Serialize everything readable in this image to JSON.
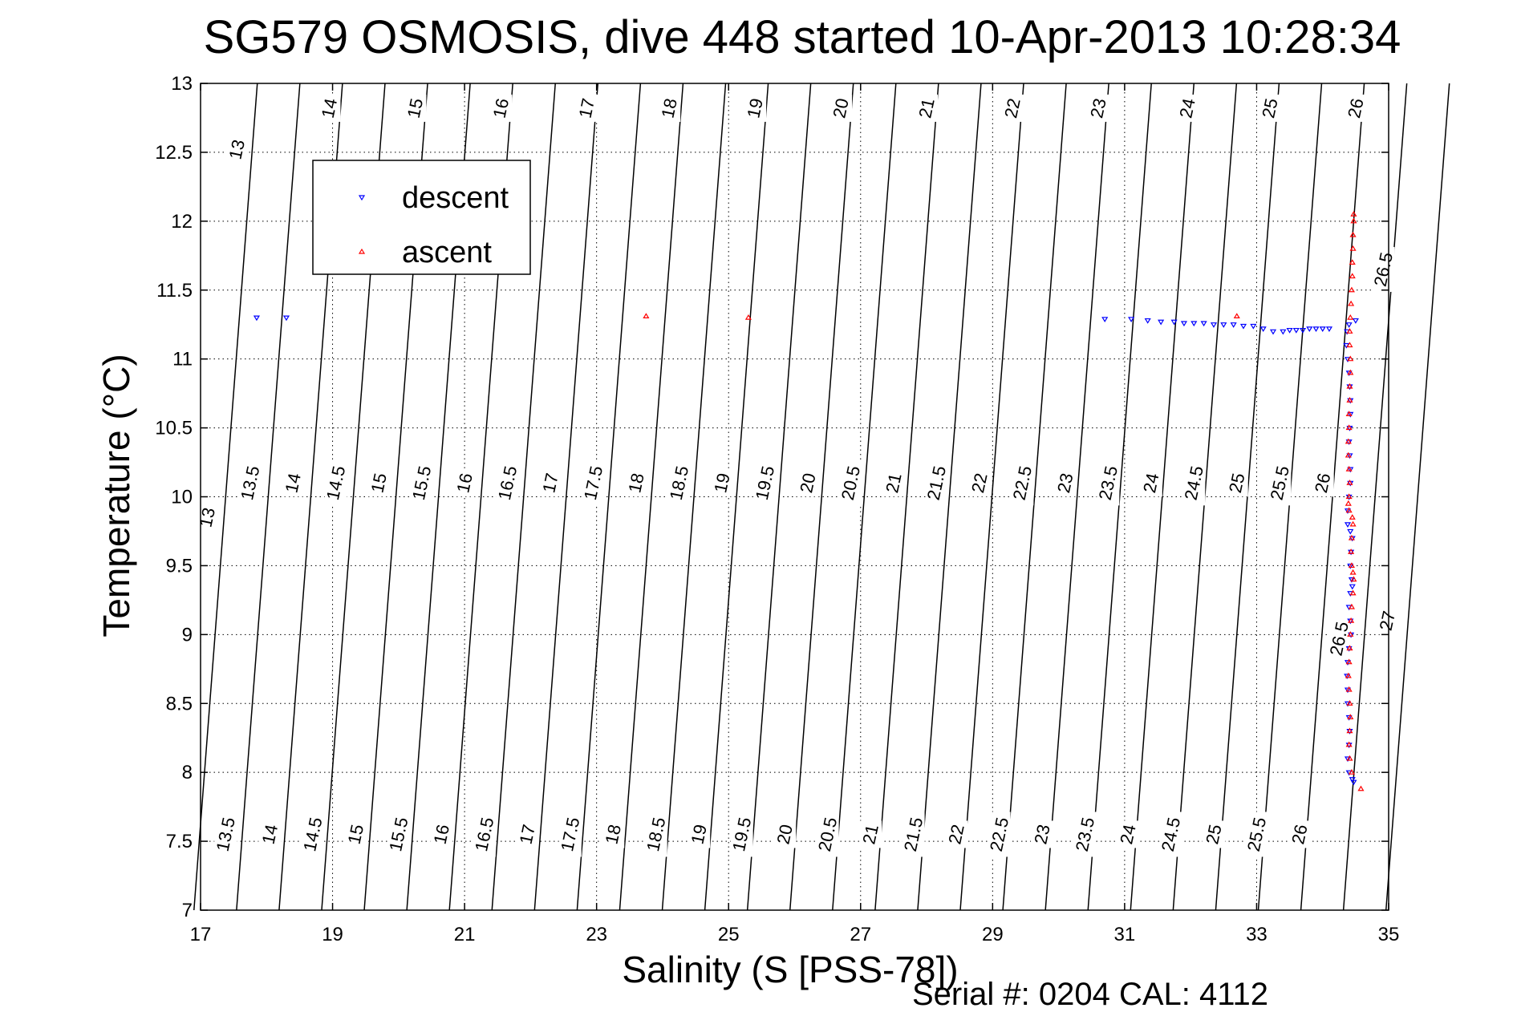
{
  "chart_data": {
    "type": "scatter",
    "title": "SG579 OSMOSIS, dive 448 started 10-Apr-2013 10:28:34",
    "xlabel": "Salinity (S [PSS-78])",
    "ylabel": "Temperature (°C)",
    "footer": "Serial #: 0204  CAL: 4112",
    "xlim": [
      17,
      35
    ],
    "ylim": [
      7,
      13
    ],
    "xticks": [
      17,
      19,
      21,
      23,
      25,
      27,
      29,
      31,
      33,
      35
    ],
    "xtick_labels": [
      "17",
      "19",
      "21",
      "23",
      "25",
      "27",
      "29",
      "31",
      "33",
      "35"
    ],
    "yticks": [
      7,
      7.5,
      8,
      8.5,
      9,
      9.5,
      10,
      10.5,
      11,
      11.5,
      12,
      12.5,
      13
    ],
    "ytick_labels": [
      "7",
      "7.5",
      "8",
      "8.5",
      "9",
      "9.5",
      "10",
      "10.5",
      "11",
      "11.5",
      "12",
      "12.5",
      "13"
    ],
    "grid": true,
    "legend": {
      "placement": "top-left",
      "entries": [
        {
          "name": "descent",
          "color": "#0000ff",
          "marker": "triangle-down"
        },
        {
          "name": "ascent",
          "color": "#ff0000",
          "marker": "triangle-up"
        }
      ]
    },
    "isopycnal_contours": {
      "color": "#000000",
      "levels": [
        13,
        13.5,
        14,
        14.5,
        15,
        15.5,
        16,
        16.5,
        17,
        17.5,
        18,
        18.5,
        19,
        19.5,
        20,
        20.5,
        21,
        21.5,
        22,
        22.5,
        23,
        23.5,
        24,
        24.5,
        25,
        25.5,
        26,
        26.5,
        27
      ],
      "labels_top": [
        {
          "text": "13",
          "s": 17.55,
          "t": 12.52
        },
        {
          "text": "14",
          "s": 18.95,
          "t": 12.82
        },
        {
          "text": "15",
          "s": 20.25,
          "t": 12.82
        },
        {
          "text": "16",
          "s": 21.55,
          "t": 12.82
        },
        {
          "text": "17",
          "s": 22.85,
          "t": 12.82
        },
        {
          "text": "18",
          "s": 24.1,
          "t": 12.82
        },
        {
          "text": "19",
          "s": 25.4,
          "t": 12.82
        },
        {
          "text": "20",
          "s": 26.7,
          "t": 12.82
        },
        {
          "text": "21",
          "s": 28.0,
          "t": 12.82
        },
        {
          "text": "22",
          "s": 29.3,
          "t": 12.82
        },
        {
          "text": "23",
          "s": 30.6,
          "t": 12.82
        },
        {
          "text": "24",
          "s": 31.95,
          "t": 12.82
        },
        {
          "text": "25",
          "s": 33.2,
          "t": 12.82
        },
        {
          "text": "26",
          "s": 34.5,
          "t": 12.82
        },
        {
          "text": "26.5",
          "s": 34.92,
          "t": 11.65
        }
      ],
      "labels_mid": [
        {
          "text": "13",
          "s": 17.1,
          "t": 9.85
        },
        {
          "text": "13.5",
          "s": 17.75,
          "t": 10.1
        },
        {
          "text": "14",
          "s": 18.4,
          "t": 10.1
        },
        {
          "text": "14.5",
          "s": 19.05,
          "t": 10.1
        },
        {
          "text": "15",
          "s": 19.7,
          "t": 10.1
        },
        {
          "text": "15.5",
          "s": 20.35,
          "t": 10.1
        },
        {
          "text": "16",
          "s": 21.0,
          "t": 10.1
        },
        {
          "text": "16.5",
          "s": 21.65,
          "t": 10.1
        },
        {
          "text": "17",
          "s": 22.3,
          "t": 10.1
        },
        {
          "text": "17.5",
          "s": 22.95,
          "t": 10.1
        },
        {
          "text": "18",
          "s": 23.6,
          "t": 10.1
        },
        {
          "text": "18.5",
          "s": 24.25,
          "t": 10.1
        },
        {
          "text": "19",
          "s": 24.9,
          "t": 10.1
        },
        {
          "text": "19.5",
          "s": 25.55,
          "t": 10.1
        },
        {
          "text": "20",
          "s": 26.2,
          "t": 10.1
        },
        {
          "text": "20.5",
          "s": 26.85,
          "t": 10.1
        },
        {
          "text": "21",
          "s": 27.5,
          "t": 10.1
        },
        {
          "text": "21.5",
          "s": 28.15,
          "t": 10.1
        },
        {
          "text": "22",
          "s": 28.8,
          "t": 10.1
        },
        {
          "text": "22.5",
          "s": 29.45,
          "t": 10.1
        },
        {
          "text": "23",
          "s": 30.1,
          "t": 10.1
        },
        {
          "text": "23.5",
          "s": 30.75,
          "t": 10.1
        },
        {
          "text": "24",
          "s": 31.4,
          "t": 10.1
        },
        {
          "text": "24.5",
          "s": 32.05,
          "t": 10.1
        },
        {
          "text": "25",
          "s": 32.7,
          "t": 10.1
        },
        {
          "text": "25.5",
          "s": 33.35,
          "t": 10.1
        },
        {
          "text": "26",
          "s": 34.0,
          "t": 10.1
        },
        {
          "text": "26.5",
          "s": 34.25,
          "t": 8.97
        },
        {
          "text": "27",
          "s": 34.98,
          "t": 9.1
        }
      ],
      "labels_bottom": [
        {
          "text": "13.5",
          "s": 17.38,
          "t": 7.55
        },
        {
          "text": "14",
          "s": 18.05,
          "t": 7.55
        },
        {
          "text": "14.5",
          "s": 18.7,
          "t": 7.55
        },
        {
          "text": "15",
          "s": 19.35,
          "t": 7.55
        },
        {
          "text": "15.5",
          "s": 20.0,
          "t": 7.55
        },
        {
          "text": "16",
          "s": 20.65,
          "t": 7.55
        },
        {
          "text": "16.5",
          "s": 21.3,
          "t": 7.55
        },
        {
          "text": "17",
          "s": 21.95,
          "t": 7.55
        },
        {
          "text": "17.5",
          "s": 22.6,
          "t": 7.55
        },
        {
          "text": "18",
          "s": 23.25,
          "t": 7.55
        },
        {
          "text": "18.5",
          "s": 23.9,
          "t": 7.55
        },
        {
          "text": "19",
          "s": 24.55,
          "t": 7.55
        },
        {
          "text": "19.5",
          "s": 25.2,
          "t": 7.55
        },
        {
          "text": "20",
          "s": 25.85,
          "t": 7.55
        },
        {
          "text": "20.5",
          "s": 26.5,
          "t": 7.55
        },
        {
          "text": "21",
          "s": 27.15,
          "t": 7.55
        },
        {
          "text": "21.5",
          "s": 27.8,
          "t": 7.55
        },
        {
          "text": "22",
          "s": 28.45,
          "t": 7.55
        },
        {
          "text": "22.5",
          "s": 29.1,
          "t": 7.55
        },
        {
          "text": "23",
          "s": 29.75,
          "t": 7.55
        },
        {
          "text": "23.5",
          "s": 30.4,
          "t": 7.55
        },
        {
          "text": "24",
          "s": 31.05,
          "t": 7.55
        },
        {
          "text": "24.5",
          "s": 31.7,
          "t": 7.55
        },
        {
          "text": "25",
          "s": 32.35,
          "t": 7.55
        },
        {
          "text": "25.5",
          "s": 33.0,
          "t": 7.55
        },
        {
          "text": "26",
          "s": 33.65,
          "t": 7.55
        }
      ]
    },
    "series": [
      {
        "name": "descent",
        "color": "#0000ff",
        "marker": "triangle-down",
        "points": [
          [
            17.85,
            11.3
          ],
          [
            18.3,
            11.3
          ],
          [
            30.7,
            11.29
          ],
          [
            31.1,
            11.29
          ],
          [
            31.35,
            11.28
          ],
          [
            31.55,
            11.27
          ],
          [
            31.75,
            11.27
          ],
          [
            31.9,
            11.26
          ],
          [
            32.05,
            11.26
          ],
          [
            32.2,
            11.26
          ],
          [
            32.35,
            11.25
          ],
          [
            32.5,
            11.25
          ],
          [
            32.65,
            11.25
          ],
          [
            32.8,
            11.24
          ],
          [
            32.95,
            11.24
          ],
          [
            33.1,
            11.22
          ],
          [
            33.25,
            11.2
          ],
          [
            33.4,
            11.2
          ],
          [
            33.5,
            11.21
          ],
          [
            33.6,
            11.21
          ],
          [
            33.7,
            11.21
          ],
          [
            33.8,
            11.22
          ],
          [
            33.9,
            11.22
          ],
          [
            34.0,
            11.22
          ],
          [
            34.1,
            11.22
          ],
          [
            34.5,
            11.28
          ],
          [
            34.4,
            11.25
          ],
          [
            34.37,
            11.2
          ],
          [
            34.36,
            11.1
          ],
          [
            34.38,
            11.0
          ],
          [
            34.4,
            10.9
          ],
          [
            34.41,
            10.8
          ],
          [
            34.42,
            10.7
          ],
          [
            34.42,
            10.6
          ],
          [
            34.41,
            10.5
          ],
          [
            34.4,
            10.4
          ],
          [
            34.41,
            10.3
          ],
          [
            34.42,
            10.2
          ],
          [
            34.42,
            10.1
          ],
          [
            34.4,
            10.0
          ],
          [
            34.38,
            9.9
          ],
          [
            34.38,
            9.8
          ],
          [
            34.42,
            9.75
          ],
          [
            34.45,
            9.7
          ],
          [
            34.43,
            9.6
          ],
          [
            34.42,
            9.5
          ],
          [
            34.44,
            9.4
          ],
          [
            34.45,
            9.35
          ],
          [
            34.42,
            9.3
          ],
          [
            34.4,
            9.2
          ],
          [
            34.42,
            9.1
          ],
          [
            34.43,
            9.0
          ],
          [
            34.4,
            8.9
          ],
          [
            34.38,
            8.8
          ],
          [
            34.37,
            8.7
          ],
          [
            34.38,
            8.6
          ],
          [
            34.38,
            8.5
          ],
          [
            34.4,
            8.4
          ],
          [
            34.41,
            8.3
          ],
          [
            34.4,
            8.2
          ],
          [
            34.38,
            8.1
          ],
          [
            34.4,
            8.0
          ],
          [
            34.45,
            7.95
          ],
          [
            34.47,
            7.93
          ]
        ]
      },
      {
        "name": "ascent",
        "color": "#ff0000",
        "marker": "triangle-up",
        "points": [
          [
            23.75,
            11.31
          ],
          [
            25.3,
            11.3
          ],
          [
            32.7,
            11.31
          ],
          [
            34.47,
            12.05
          ],
          [
            34.47,
            12.0
          ],
          [
            34.46,
            11.9
          ],
          [
            34.46,
            11.8
          ],
          [
            34.45,
            11.7
          ],
          [
            34.45,
            11.6
          ],
          [
            34.44,
            11.5
          ],
          [
            34.43,
            11.4
          ],
          [
            34.42,
            11.3
          ],
          [
            34.41,
            11.2
          ],
          [
            34.41,
            11.1
          ],
          [
            34.42,
            11.0
          ],
          [
            34.42,
            10.9
          ],
          [
            34.41,
            10.8
          ],
          [
            34.41,
            10.7
          ],
          [
            34.4,
            10.6
          ],
          [
            34.4,
            10.5
          ],
          [
            34.39,
            10.4
          ],
          [
            34.39,
            10.3
          ],
          [
            34.4,
            10.2
          ],
          [
            34.41,
            10.1
          ],
          [
            34.4,
            10.0
          ],
          [
            34.39,
            9.95
          ],
          [
            34.4,
            9.9
          ],
          [
            34.45,
            9.85
          ],
          [
            34.46,
            9.8
          ],
          [
            34.44,
            9.7
          ],
          [
            34.43,
            9.6
          ],
          [
            34.44,
            9.5
          ],
          [
            34.46,
            9.45
          ],
          [
            34.47,
            9.4
          ],
          [
            34.46,
            9.3
          ],
          [
            34.44,
            9.2
          ],
          [
            34.43,
            9.1
          ],
          [
            34.42,
            9.0
          ],
          [
            34.41,
            8.9
          ],
          [
            34.4,
            8.8
          ],
          [
            34.39,
            8.7
          ],
          [
            34.4,
            8.6
          ],
          [
            34.41,
            8.5
          ],
          [
            34.42,
            8.4
          ],
          [
            34.41,
            8.3
          ],
          [
            34.4,
            8.2
          ],
          [
            34.41,
            8.1
          ],
          [
            34.44,
            8.0
          ],
          [
            34.58,
            7.88
          ]
        ]
      }
    ]
  }
}
